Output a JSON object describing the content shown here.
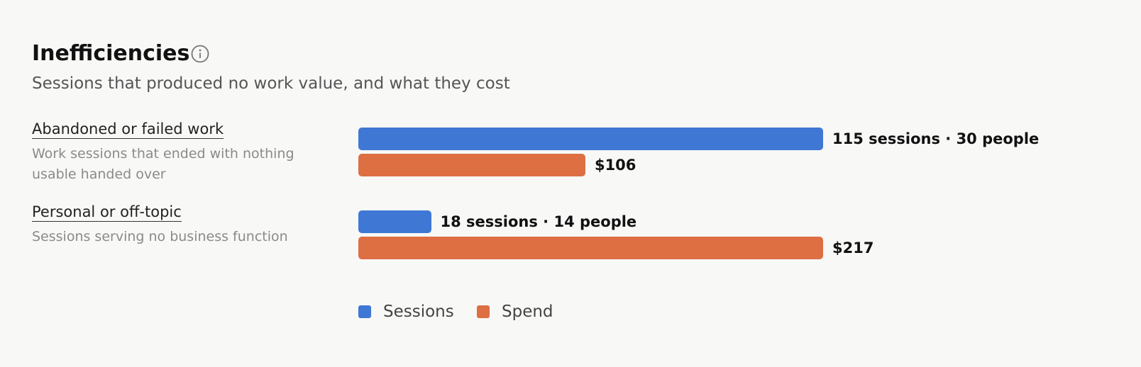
{
  "chart_data": {
    "type": "bar",
    "orientation": "horizontal",
    "title": "Inefficiencies",
    "subtitle": "Sessions that produced no work value, and what they cost",
    "categories": [
      "Abandoned or failed work",
      "Personal or off-topic"
    ],
    "category_descriptions": [
      "Work sessions that ended with nothing usable handed over",
      "Sessions serving no business function"
    ],
    "series": [
      {
        "name": "Sessions",
        "color": "#3f78d4",
        "values": [
          115,
          18
        ],
        "value_labels": [
          "115 sessions · 30 people",
          "18 sessions · 14 people"
        ]
      },
      {
        "name": "Spend",
        "color": "#dd6f43",
        "values": [
          106,
          217
        ],
        "value_labels": [
          "$106",
          "$217"
        ]
      }
    ],
    "legend": "bottom"
  }
}
